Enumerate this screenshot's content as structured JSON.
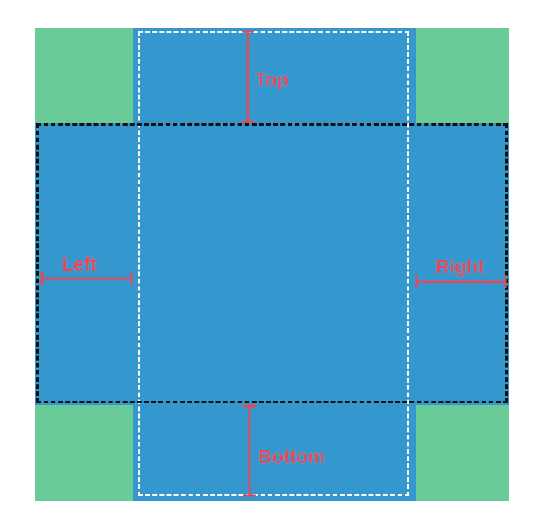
{
  "diagram": {
    "labels": {
      "top": "Top",
      "left": "Left",
      "right": "Right",
      "bottom": "Bottom"
    },
    "colors": {
      "background": "#ffffff",
      "corner_fill": "#69CC98",
      "box_fill": "#3498CF",
      "measure_color": "#E04A5C",
      "outer_dash": "#ffffff",
      "inner_dash": "#111111"
    }
  }
}
